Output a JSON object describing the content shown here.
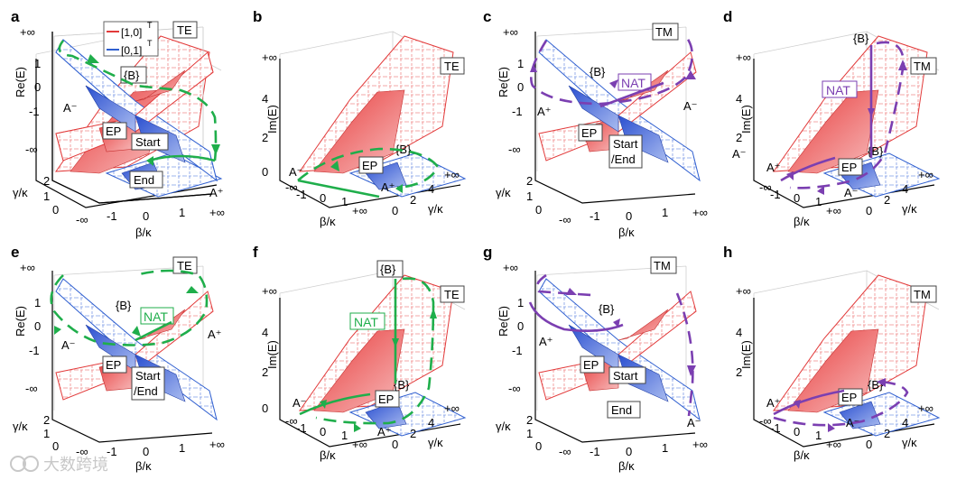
{
  "panel_labels": [
    "a",
    "b",
    "c",
    "d",
    "e",
    "f",
    "g",
    "h"
  ],
  "modes": {
    "te": "TE",
    "tm": "TM"
  },
  "legend": {
    "red": "[1,0]",
    "blue": "[0,1]",
    "sup": "T"
  },
  "axes": {
    "re_label": "Re(E)",
    "im_label": "Im(E)",
    "beta_label": "β/κ",
    "gamma_label": "γ/κ",
    "pinf": "+∞",
    "minf": "-∞",
    "re_ticks": [
      "1",
      "0",
      "-1"
    ],
    "im_ticks": [
      "4",
      "2",
      "0"
    ],
    "beta_ticks_re": [
      "-1",
      "0",
      "1"
    ],
    "beta_ticks_im": [
      "-1",
      "0",
      "1"
    ],
    "gamma_ticks_re": [
      "2",
      "1",
      "0"
    ],
    "gamma_ticks_im": [
      "0",
      "2",
      "4"
    ]
  },
  "annotations": {
    "ep": "EP",
    "start": "Start",
    "end": "End",
    "slash_end": "/End",
    "b_set": "{B}",
    "a_minus": "A⁻",
    "a_plus": "A⁺",
    "nat": "NAT"
  },
  "colors": {
    "green": "#1fae4b",
    "purple": "#7b3fb1",
    "red": "#e23a3a",
    "blue": "#2f5fd0"
  },
  "watermark": "大数跨境"
}
